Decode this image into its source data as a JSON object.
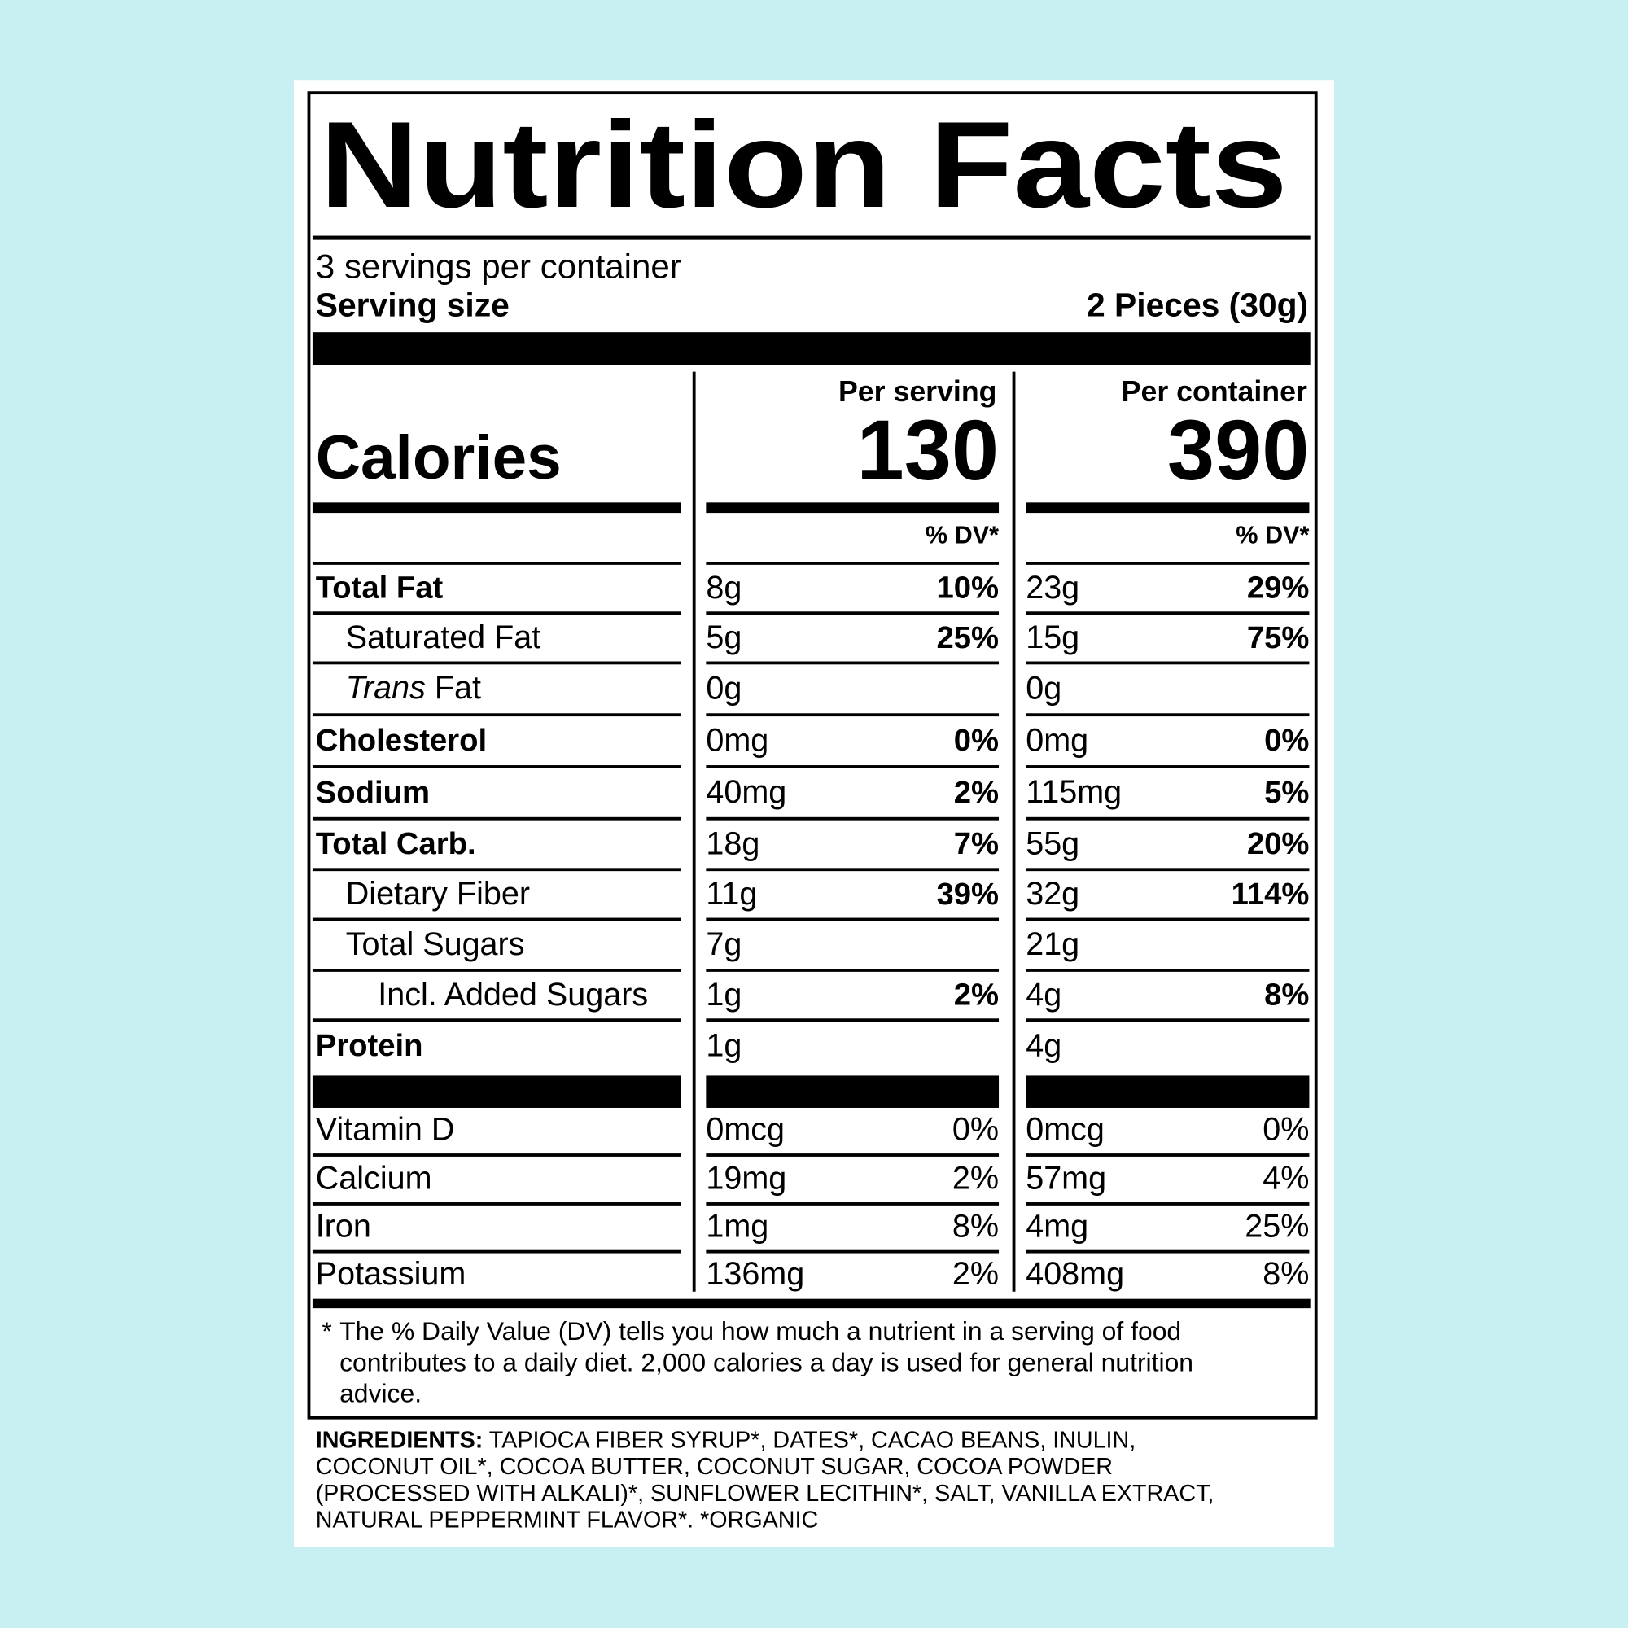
{
  "header": {
    "title": "Nutrition Facts",
    "servings": "3 servings per container",
    "serving_size_label": "Serving size",
    "serving_size": "2 Pieces (30g)"
  },
  "calories": {
    "label": "Calories",
    "columns": [
      {
        "heading": "Per serving",
        "value": 130,
        "dv_heading": "% DV*"
      },
      {
        "heading": "Per container",
        "value": 390,
        "dv_heading": "% DV*"
      }
    ]
  },
  "nutrients": [
    {
      "name": "Total Fat",
      "bold": true,
      "indent": 0,
      "serving": [
        "8g",
        "10%"
      ],
      "container": [
        "23g",
        "29%"
      ]
    },
    {
      "name": "Saturated Fat",
      "bold": false,
      "indent": 1,
      "serving": [
        "5g",
        "25%"
      ],
      "container": [
        "15g",
        "75%"
      ]
    },
    {
      "name_em": "Trans",
      "name": " Fat",
      "bold": false,
      "indent": 1,
      "serving": [
        "0g",
        null
      ],
      "container": [
        "0g",
        null
      ]
    },
    {
      "name": "Cholesterol",
      "bold": true,
      "indent": 0,
      "serving": [
        "0mg",
        "0%"
      ],
      "container": [
        "0mg",
        "0%"
      ]
    },
    {
      "name": "Sodium",
      "bold": true,
      "indent": 0,
      "serving": [
        "40mg",
        "2%"
      ],
      "container": [
        "115mg",
        "5%"
      ]
    },
    {
      "name": "Total Carb.",
      "bold": true,
      "indent": 0,
      "serving": [
        "18g",
        "7%"
      ],
      "container": [
        "55g",
        "20%"
      ]
    },
    {
      "name": "Dietary Fiber",
      "bold": false,
      "indent": 1,
      "serving": [
        "11g",
        "39%"
      ],
      "container": [
        "32g",
        "114%"
      ]
    },
    {
      "name": "Total Sugars",
      "bold": false,
      "indent": 1,
      "serving": [
        "7g",
        null
      ],
      "container": [
        "21g",
        null
      ]
    },
    {
      "name": "Incl. Added Sugars",
      "bold": false,
      "indent": 2,
      "serving": [
        "1g",
        "2%"
      ],
      "container": [
        "4g",
        "8%"
      ]
    },
    {
      "name": "Protein",
      "bold": true,
      "indent": 0,
      "serving": [
        "1g",
        null
      ],
      "container": [
        "4g",
        null
      ]
    }
  ],
  "vitamins": [
    {
      "name": "Vitamin D",
      "serving": [
        "0mcg",
        "0%"
      ],
      "container": [
        "0mcg",
        "0%"
      ]
    },
    {
      "name": "Calcium",
      "serving": [
        "19mg",
        "2%"
      ],
      "container": [
        "57mg",
        "4%"
      ]
    },
    {
      "name": "Iron",
      "serving": [
        "1mg",
        "8%"
      ],
      "container": [
        "4mg",
        "25%"
      ]
    },
    {
      "name": "Potassium",
      "serving": [
        "136mg",
        "2%"
      ],
      "container": [
        "408mg",
        "8%"
      ]
    }
  ],
  "footnote": {
    "mark": "*",
    "lines": [
      "The % Daily Value (DV) tells you how much a nutrient in a serving of food",
      "contributes to a daily diet. 2,000 calories a day is used for general nutrition",
      "advice."
    ]
  },
  "ingredients": {
    "label": "INGREDIENTS:",
    "lines": [
      " TAPIOCA FIBER SYRUP*, DATES*, CACAO BEANS, INULIN,",
      "COCONUT OIL*, COCOA BUTTER, COCONUT SUGAR, COCOA POWDER",
      "(PROCESSED WITH ALKALI)*, SUNFLOWER LECITHIN*, SALT, VANILLA EXTRACT,",
      "NATURAL PEPPERMINT FLAVOR*. *ORGANIC"
    ]
  }
}
